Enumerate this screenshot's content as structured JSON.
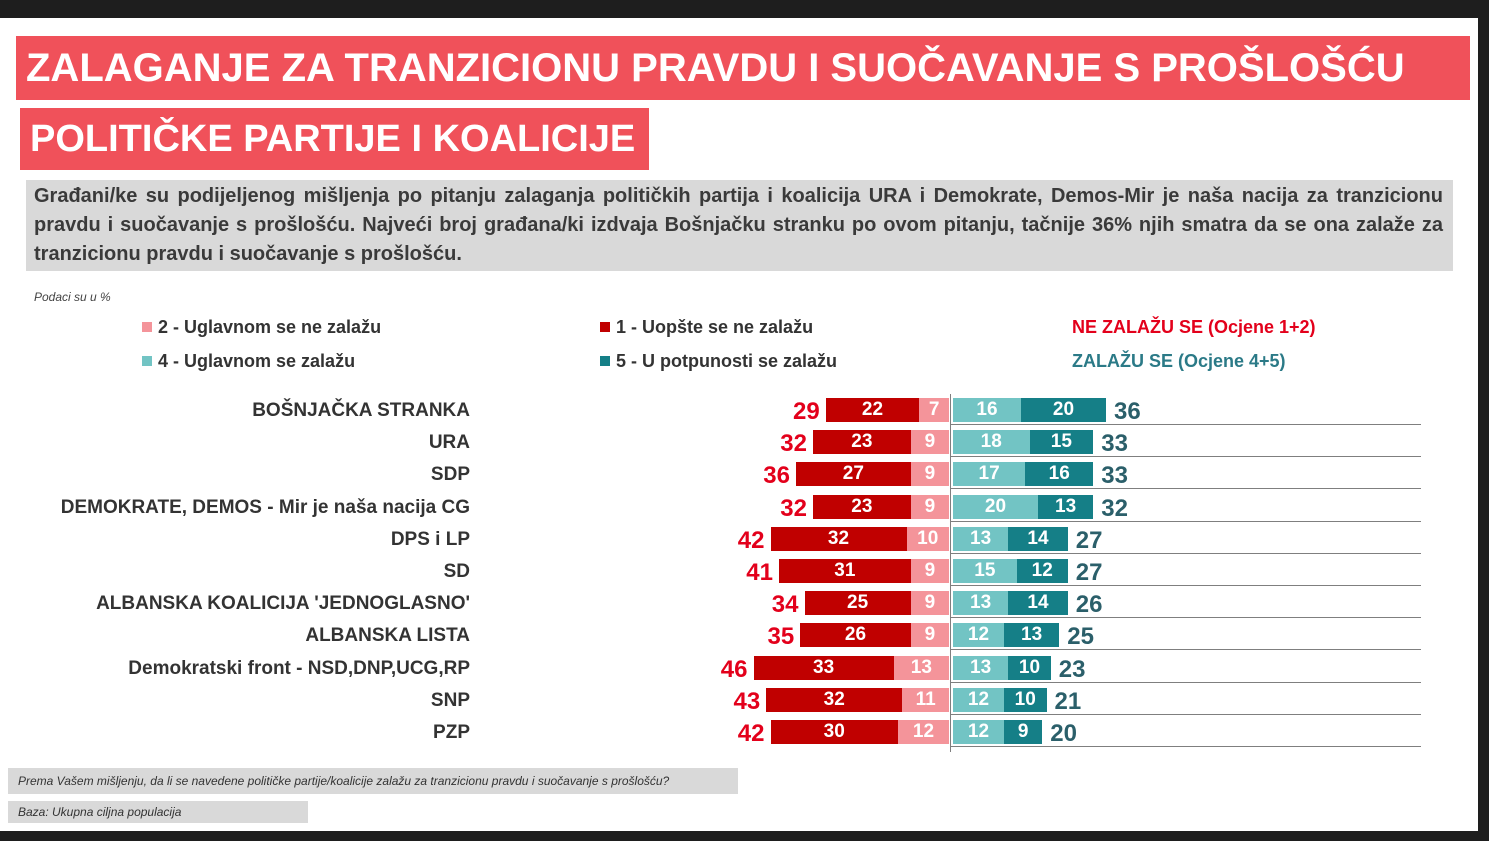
{
  "title": "ZALAGANJE ZA TRANZICIONU PRAVDU I SUOČAVANJE S PROŠLOŠĆU",
  "subtitle": "POLITIČKE PARTIJE I KOALICIJE",
  "intro": "Građani/ke su podijeljenog mišljenja po pitanju zalaganja političkih partija i koalicija URA i Demokrate, Demos-Mir je naša nacija za tranzicionu pravdu i suočavanje s prošlošću. Najveći broj građana/ki izdvaja Bošnjačku stranku po ovom pitanju, tačnije 36% njih smatra da se ona zalaže za tranzicionu pravdu i suočavanje s prošlošću.",
  "unit_note": "Podaci su u %",
  "legend": {
    "s2": "2 - Uglavnom se ne zalažu",
    "s1": "1 -  Uopšte se ne zalažu",
    "neg_total": "NE ZALAŽU SE (Ocjene 1+2)",
    "s4": "4 - Uglavnom se zalažu",
    "s5": "5 - U potpunosti se zalažu",
    "pos_total": "ZALAŽU SE (Ocjene 4+5)"
  },
  "colors": {
    "s1": "#c00000",
    "s2": "#f4949a",
    "s4": "#72c4c4",
    "s5": "#157f87",
    "neg_total": "#e3001b",
    "pos_total": "#2b5f6a"
  },
  "chart_data": {
    "type": "bar",
    "orientation": "horizontal-diverging-stacked",
    "categories": [
      "BOŠNJAČKA STRANKA",
      "URA",
      "SDP",
      "DEMOKRATE, DEMOS - Mir je naša nacija CG",
      "DPS i LP",
      "SD",
      "ALBANSKA KOALICIJA 'JEDNOGLASNO'",
      "ALBANSKA LISTA",
      "Demokratski front - NSD,DNP,UCG,RP",
      "SNP",
      "PZP"
    ],
    "series": [
      {
        "name": "1 -  Uopšte se ne zalažu",
        "values": [
          22,
          23,
          27,
          23,
          32,
          31,
          25,
          26,
          33,
          32,
          30
        ]
      },
      {
        "name": "2 - Uglavnom se ne zalažu",
        "values": [
          7,
          9,
          9,
          9,
          10,
          9,
          9,
          9,
          13,
          11,
          12
        ]
      },
      {
        "name": "4 - Uglavnom se zalažu",
        "values": [
          16,
          18,
          17,
          20,
          13,
          15,
          13,
          12,
          13,
          12,
          12
        ]
      },
      {
        "name": "5 - U potpunosti se zalažu",
        "values": [
          20,
          15,
          16,
          13,
          14,
          12,
          14,
          13,
          10,
          10,
          9
        ]
      }
    ],
    "totals_negative": [
      29,
      32,
      36,
      32,
      42,
      41,
      34,
      35,
      46,
      43,
      42
    ],
    "totals_positive": [
      36,
      33,
      33,
      32,
      27,
      27,
      26,
      25,
      23,
      21,
      20
    ],
    "legend_position": "top"
  },
  "footer": {
    "question": "Prema Vašem mišljenju, da li se navedene političke partije/koalicije zalažu za tranzicionu pravdu i suočavanje s prošlošću?",
    "base": "Baza: Ukupna ciljna populacija"
  }
}
